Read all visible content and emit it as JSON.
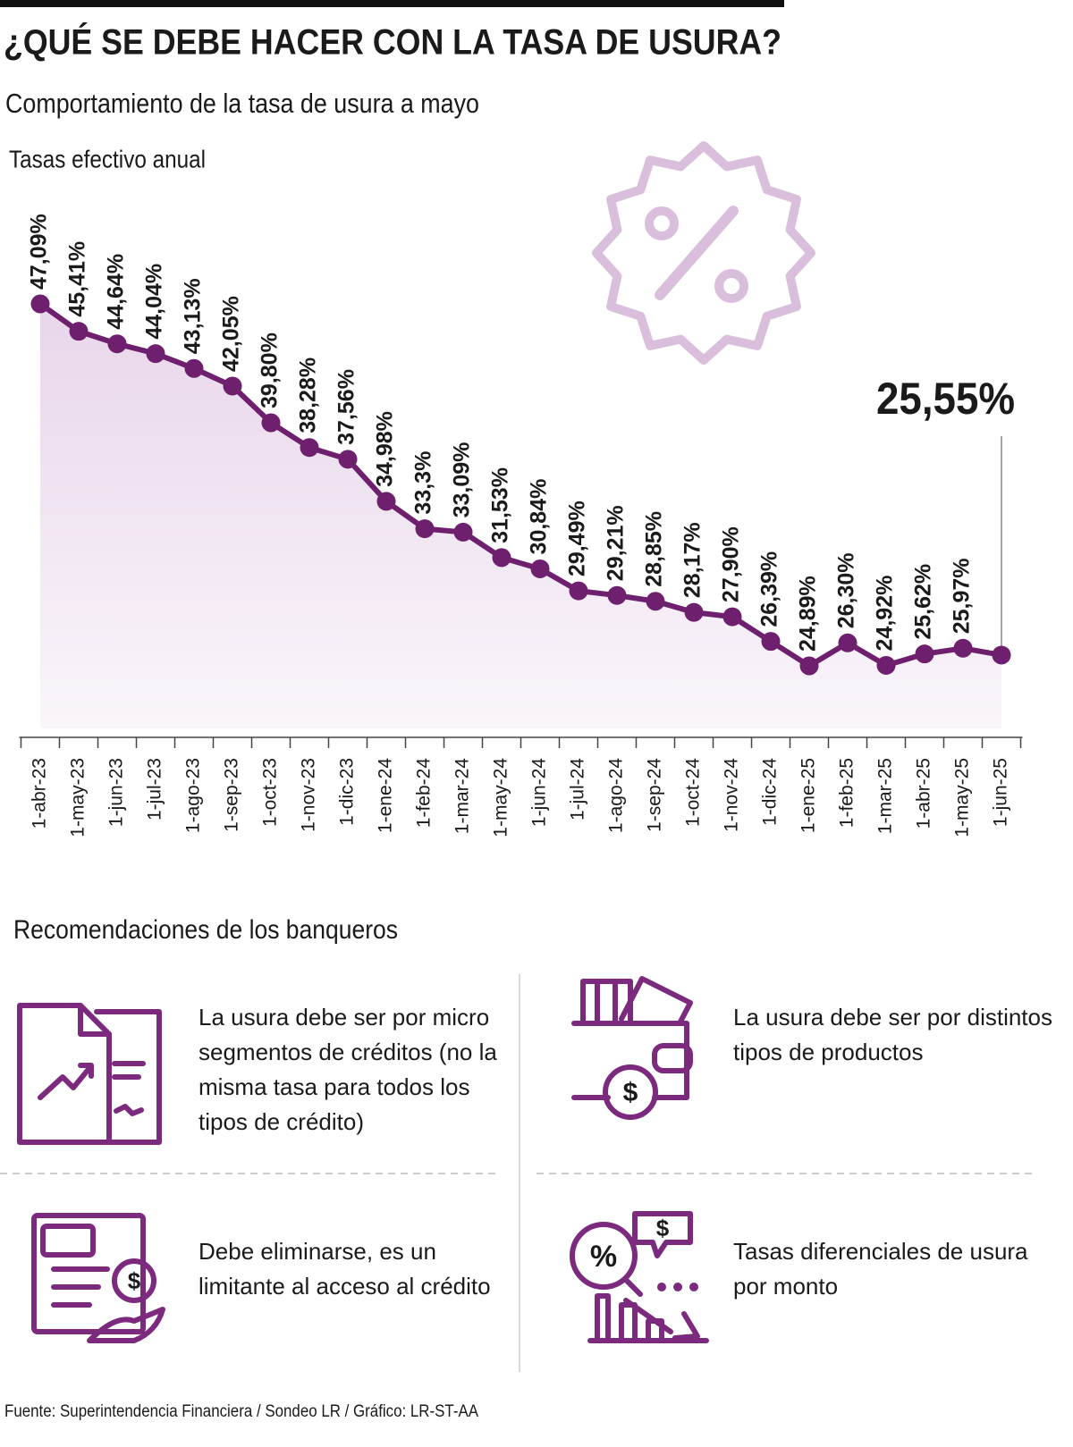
{
  "title": "¿QUÉ SE DEBE HACER CON LA TASA DE USURA?",
  "subtitle": "Comportamiento de la tasa de usura a mayo",
  "chart_data": {
    "type": "line",
    "y_label": "Tasas efectivo anual",
    "categories": [
      "1-abr-23",
      "1-may-23",
      "1-jun-23",
      "1-jul-23",
      "1-ago-23",
      "1-sep-23",
      "1-oct-23",
      "1-nov-23",
      "1-dic-23",
      "1-ene-24",
      "1-feb-24",
      "1-mar-24",
      "1-may-24",
      "1-jun-24",
      "1-jul-24",
      "1-ago-24",
      "1-sep-24",
      "1-oct-24",
      "1-nov-24",
      "1-dic-24",
      "1-ene-25",
      "1-feb-25",
      "1-mar-25",
      "1-abr-25",
      "1-may-25",
      "1-jun-25"
    ],
    "values": [
      47.09,
      45.41,
      44.64,
      44.04,
      43.13,
      42.05,
      39.8,
      38.28,
      37.56,
      34.98,
      33.3,
      33.09,
      31.53,
      30.84,
      29.49,
      29.21,
      28.85,
      28.17,
      27.9,
      26.39,
      24.89,
      26.3,
      24.92,
      25.62,
      25.97,
      25.55
    ],
    "value_labels": [
      "47,09%",
      "45,41%",
      "44,64%",
      "44,04%",
      "43,13%",
      "42,05%",
      "39,80%",
      "38,28%",
      "37,56%",
      "34,98%",
      "33,3%",
      "33,09%",
      "31,53%",
      "30,84%",
      "29,49%",
      "29,21%",
      "28,85%",
      "28,17%",
      "27,90%",
      "26,39%",
      "24,89%",
      "26,30%",
      "24,92%",
      "25,62%",
      "25,97%",
      "25,55%"
    ],
    "color": "#6e1f6e"
  },
  "recommendations_title": "Recomendaciones de los banqueros",
  "recommendations": [
    {
      "lines": [
        "La usura debe ser por micro",
        "segmentos de créditos (no la",
        "misma tasa para todos los",
        "tipos de crédito)"
      ]
    },
    {
      "lines": [
        "La usura debe ser por distintos",
        "tipos de productos"
      ]
    },
    {
      "lines": [
        "Debe eliminarse, es un",
        "limitante al acceso al crédito"
      ]
    },
    {
      "lines": [
        "Tasas diferenciales de usura",
        "por monto"
      ]
    }
  ],
  "source": "Fuente: Superintendencia Financiera / Sondeo LR / Gráfico: LR-ST-AA"
}
